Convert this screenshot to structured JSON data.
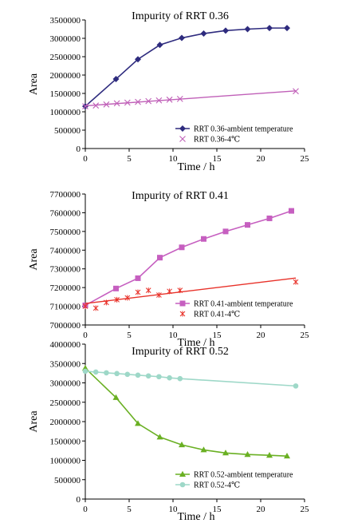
{
  "chart_data": [
    {
      "type": "line",
      "title": "Impurity of RRT 0.36",
      "xlabel": "Time / h",
      "ylabel": "Area",
      "xlim": [
        0,
        25
      ],
      "ylim": [
        0,
        3500000
      ],
      "x_ticks": [
        "0",
        "5",
        "10",
        "15",
        "20",
        "25"
      ],
      "y_ticks": [
        "0",
        "500000",
        "1000000",
        "1500000",
        "2000000",
        "2500000",
        "3000000",
        "3500000"
      ],
      "legend_position": "bottom-right",
      "series": [
        {
          "name": "RRT 0.36-ambient temperature",
          "color": "#2e2b7e",
          "marker": "diamond",
          "connected": true,
          "x": [
            0,
            3.5,
            6,
            8.5,
            11,
            13.5,
            16,
            18.5,
            21,
            23
          ],
          "y": [
            1150000,
            1890000,
            2430000,
            2820000,
            3010000,
            3130000,
            3210000,
            3250000,
            3280000,
            3280000
          ]
        },
        {
          "name": "RRT 0.36-4℃",
          "color": "#c060b8",
          "marker": "x",
          "connected": false,
          "trendline": true,
          "x": [
            0,
            1.2,
            2.4,
            3.6,
            4.8,
            6,
            7.2,
            8.4,
            9.6,
            10.8,
            24
          ],
          "y": [
            1150000,
            1170000,
            1200000,
            1230000,
            1250000,
            1270000,
            1290000,
            1310000,
            1330000,
            1350000,
            1560000
          ]
        }
      ]
    },
    {
      "type": "line",
      "title": "Impurity of RRT 0.41",
      "xlabel": "Time / h",
      "ylabel": "Area",
      "xlim": [
        0,
        25
      ],
      "ylim": [
        7000000,
        7700000
      ],
      "x_ticks": [
        "0",
        "5",
        "10",
        "15",
        "20",
        "25"
      ],
      "y_ticks": [
        "7000000",
        "7100000",
        "7200000",
        "7300000",
        "7400000",
        "7500000",
        "7600000",
        "7700000"
      ],
      "legend_position": "bottom-right",
      "series": [
        {
          "name": "RRT 0.41-ambient temperature",
          "color": "#c65fc0",
          "marker": "square",
          "connected": true,
          "x": [
            0,
            3.5,
            6,
            8.5,
            11,
            13.5,
            16,
            18.5,
            21,
            23.5
          ],
          "y": [
            7105000,
            7195000,
            7250000,
            7360000,
            7415000,
            7460000,
            7500000,
            7535000,
            7570000,
            7610000
          ]
        },
        {
          "name": "RRT 0.41-4℃",
          "color": "#e8322a",
          "marker": "asterisk",
          "connected": false,
          "trendline": true,
          "x": [
            0,
            1.2,
            2.4,
            3.6,
            4.8,
            6,
            7.2,
            8.4,
            9.6,
            10.8,
            24
          ],
          "y": [
            7100000,
            7090000,
            7120000,
            7135000,
            7145000,
            7175000,
            7185000,
            7160000,
            7180000,
            7185000,
            7230000
          ]
        }
      ]
    },
    {
      "type": "line",
      "title": "Impurity of RRT 0.52",
      "xlabel": "Time / h",
      "ylabel": "Area",
      "xlim": [
        0,
        25
      ],
      "ylim": [
        0,
        4000000
      ],
      "x_ticks": [
        "0",
        "5",
        "10",
        "15",
        "20",
        "25"
      ],
      "y_ticks": [
        "0",
        "500000",
        "1000000",
        "1500000",
        "2000000",
        "2500000",
        "3000000",
        "3500000",
        "4000000"
      ],
      "legend_position": "bottom-right",
      "series": [
        {
          "name": "RRT 0.52-ambient temperature",
          "color": "#6ab023",
          "marker": "triangle",
          "connected": true,
          "x": [
            0,
            3.5,
            6,
            8.5,
            11,
            13.5,
            16,
            18.5,
            21,
            23
          ],
          "y": [
            3380000,
            2620000,
            1950000,
            1600000,
            1400000,
            1270000,
            1190000,
            1150000,
            1130000,
            1110000
          ]
        },
        {
          "name": "RRT 0.52-4℃",
          "color": "#9ed8c8",
          "marker": "circle",
          "connected": true,
          "x": [
            0,
            1.2,
            2.4,
            3.6,
            4.8,
            6,
            7.2,
            8.4,
            9.6,
            10.8,
            24
          ],
          "y": [
            3300000,
            3280000,
            3260000,
            3240000,
            3220000,
            3200000,
            3180000,
            3160000,
            3130000,
            3110000,
            2920000
          ]
        }
      ]
    }
  ]
}
